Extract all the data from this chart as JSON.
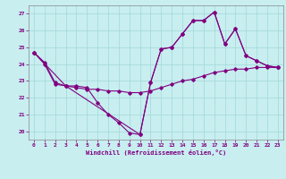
{
  "xlabel": "Windchill (Refroidissement éolien,°C)",
  "line_color": "#800080",
  "bg_color": "#c8eef0",
  "xlim": [
    -0.5,
    23.5
  ],
  "ylim": [
    19.5,
    27.5
  ],
  "yticks": [
    20,
    21,
    22,
    23,
    24,
    25,
    26,
    27
  ],
  "xticks": [
    0,
    1,
    2,
    3,
    4,
    5,
    6,
    7,
    8,
    9,
    10,
    11,
    12,
    13,
    14,
    15,
    16,
    17,
    18,
    19,
    20,
    21,
    22,
    23
  ],
  "series": [
    {
      "x": [
        0,
        1,
        2,
        3,
        4,
        5,
        6,
        7,
        8,
        9,
        10,
        11,
        12,
        13,
        14,
        15,
        16,
        17,
        18,
        19,
        20,
        21,
        22,
        23
      ],
      "y": [
        24.7,
        24.1,
        22.9,
        22.7,
        22.7,
        22.6,
        21.7,
        21.0,
        20.5,
        19.9,
        19.8,
        22.9,
        24.9,
        25.0,
        25.8,
        26.6,
        26.6,
        27.1,
        25.2,
        26.1,
        24.5,
        24.2,
        23.9,
        23.8
      ]
    },
    {
      "x": [
        0,
        1,
        2,
        3,
        4,
        5,
        6,
        7,
        8,
        9,
        10,
        11,
        12,
        13,
        14,
        15,
        16,
        17,
        18,
        19,
        20,
        21,
        22,
        23
      ],
      "y": [
        24.7,
        24.0,
        22.8,
        22.7,
        22.6,
        22.5,
        22.5,
        22.4,
        22.4,
        22.3,
        22.3,
        22.4,
        22.6,
        22.8,
        23.0,
        23.1,
        23.3,
        23.5,
        23.6,
        23.7,
        23.7,
        23.8,
        23.8,
        23.8
      ]
    },
    {
      "x": [
        0,
        3,
        10,
        11,
        12,
        13,
        14,
        15,
        16,
        17,
        18,
        19,
        20,
        21,
        22,
        23
      ],
      "y": [
        24.7,
        22.7,
        19.8,
        22.9,
        24.9,
        25.0,
        25.8,
        26.6,
        26.6,
        27.1,
        25.2,
        26.1,
        24.5,
        24.2,
        23.9,
        23.8
      ]
    }
  ]
}
